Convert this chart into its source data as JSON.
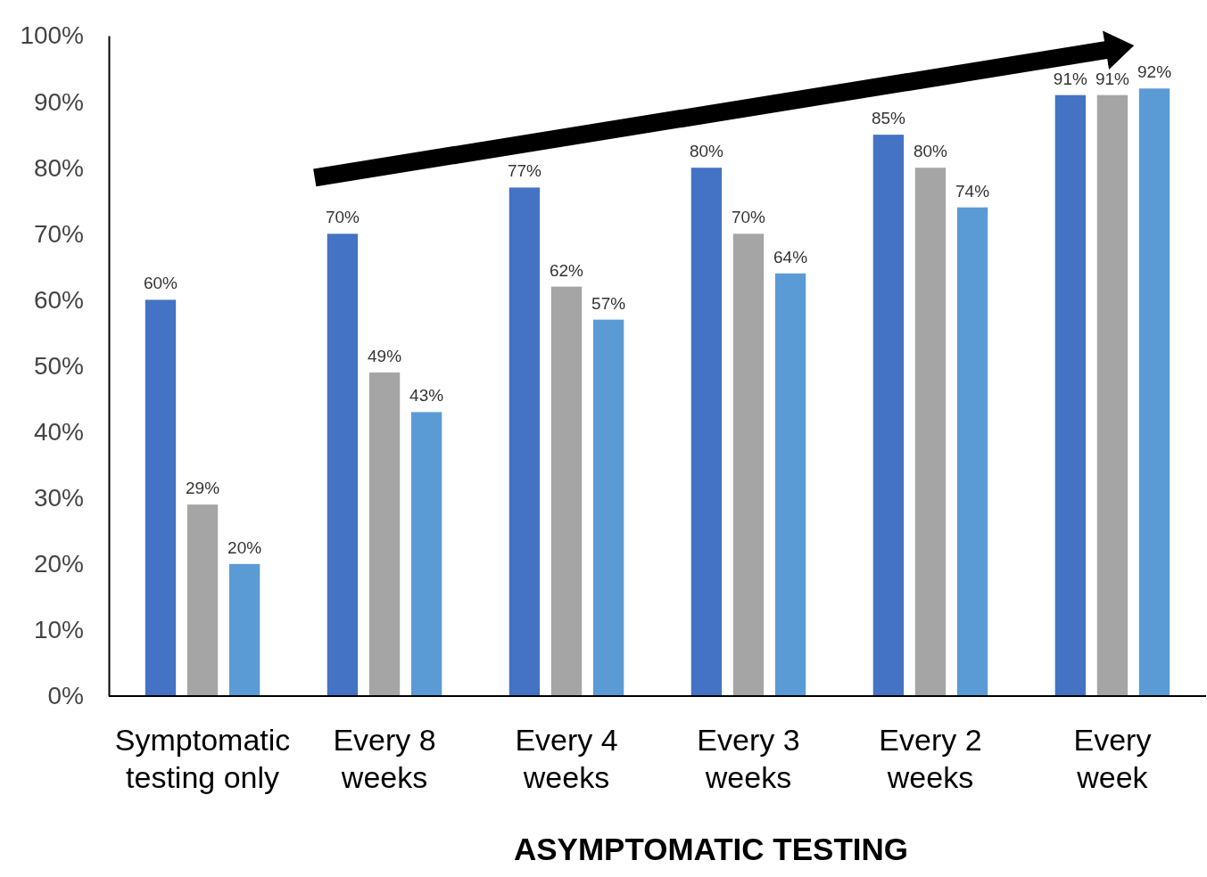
{
  "chart_data": {
    "type": "bar",
    "xlabel": "ASYMPTOMATIC TESTING",
    "categories": [
      "Symptomatic testing only",
      "Every 8 weeks",
      "Every 4 weeks",
      "Every 3 weeks",
      "Every 2 weeks",
      "Every week"
    ],
    "series": [
      {
        "color": "#4472c4",
        "values": [
          60,
          70,
          77,
          80,
          85,
          91
        ],
        "value_labels": [
          "60%",
          "70%",
          "77%",
          "80%",
          "85%",
          "91%"
        ]
      },
      {
        "color": "#a5a5a5",
        "values": [
          29,
          49,
          62,
          70,
          80,
          91
        ],
        "value_labels": [
          "29%",
          "49%",
          "62%",
          "70%",
          "80%",
          "91%"
        ]
      },
      {
        "color": "#5b9bd5",
        "values": [
          20,
          43,
          57,
          64,
          74,
          92
        ],
        "value_labels": [
          "20%",
          "43%",
          "57%",
          "64%",
          "74%",
          "92%"
        ]
      }
    ],
    "ylim": [
      0,
      100
    ],
    "yticks": [
      {
        "value": 0,
        "label": "0%"
      },
      {
        "value": 10,
        "label": "10%"
      },
      {
        "value": 20,
        "label": "20%"
      },
      {
        "value": 30,
        "label": "30%"
      },
      {
        "value": 40,
        "label": "40%"
      },
      {
        "value": 50,
        "label": "50%"
      },
      {
        "value": 60,
        "label": "60%"
      },
      {
        "value": 70,
        "label": "70%"
      },
      {
        "value": 80,
        "label": "80%"
      },
      {
        "value": 90,
        "label": "90%"
      },
      {
        "value": 100,
        "label": "100%"
      }
    ],
    "grid": false
  }
}
